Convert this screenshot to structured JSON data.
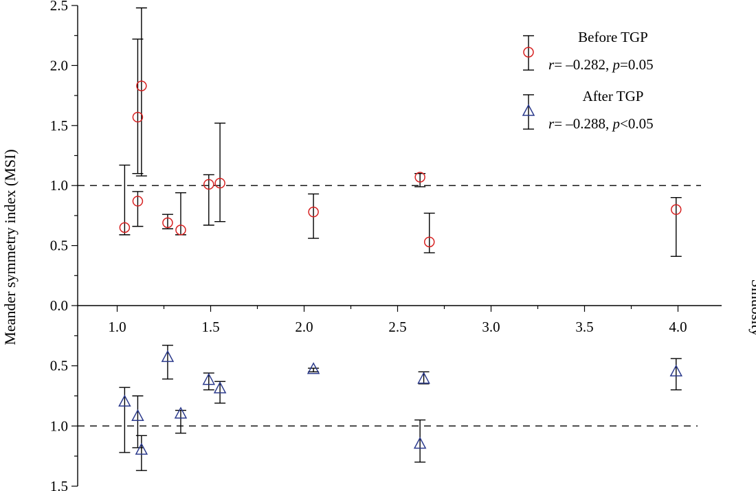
{
  "chart_data": {
    "type": "scatter",
    "xlabel": "Sinuosity",
    "ylabel": "Meander symmetry index (MSI)",
    "xlim": [
      0.85,
      4.1
    ],
    "x_ticks": [
      "1.0",
      "1.5",
      "2.0",
      "2.5",
      "3.0",
      "3.5",
      "4.0"
    ],
    "upper_y_ticks": [
      "0.0",
      "0.5",
      "1.0",
      "1.5",
      "2.0",
      "2.5"
    ],
    "lower_y_ticks": [
      "0.5",
      "1.0",
      "1.5"
    ],
    "upper_ylim": [
      0,
      2.5
    ],
    "lower_ylim": [
      0,
      1.5
    ],
    "reference_value": 1.0,
    "grid": false,
    "legend_position": "top-right",
    "series": [
      {
        "name": "Before TGP",
        "stat_r": "= –0.282, ",
        "stat_p": "=0.05",
        "marker": "circle",
        "color": "#d62020",
        "panel": "upper",
        "points": [
          {
            "x": 1.04,
            "y": 0.65,
            "lo": 0.59,
            "hi": 1.17
          },
          {
            "x": 1.11,
            "y": 0.87,
            "lo": 0.66,
            "hi": 0.95
          },
          {
            "x": 1.11,
            "y": 1.57,
            "lo": 1.1,
            "hi": 2.22
          },
          {
            "x": 1.13,
            "y": 1.83,
            "lo": 1.08,
            "hi": 2.48
          },
          {
            "x": 1.27,
            "y": 0.69,
            "lo": 0.64,
            "hi": 0.76
          },
          {
            "x": 1.34,
            "y": 0.63,
            "lo": 0.59,
            "hi": 0.94
          },
          {
            "x": 1.49,
            "y": 1.01,
            "lo": 0.67,
            "hi": 1.09
          },
          {
            "x": 1.55,
            "y": 1.02,
            "lo": 0.7,
            "hi": 1.52
          },
          {
            "x": 2.05,
            "y": 0.78,
            "lo": 0.56,
            "hi": 0.93
          },
          {
            "x": 2.62,
            "y": 1.07,
            "lo": 0.99,
            "hi": 1.1
          },
          {
            "x": 2.67,
            "y": 0.53,
            "lo": 0.44,
            "hi": 0.77
          },
          {
            "x": 3.99,
            "y": 0.8,
            "lo": 0.41,
            "hi": 0.9
          }
        ]
      },
      {
        "name": "After TGP",
        "stat_r": "= –0.288, ",
        "stat_p": "<0.05",
        "marker": "triangle",
        "color": "#2b3a8c",
        "panel": "lower",
        "points": [
          {
            "x": 1.04,
            "y": 0.8,
            "lo": 0.68,
            "hi": 1.22
          },
          {
            "x": 1.11,
            "y": 0.92,
            "lo": 0.75,
            "hi": 1.18
          },
          {
            "x": 1.13,
            "y": 1.2,
            "lo": 1.08,
            "hi": 1.37
          },
          {
            "x": 1.27,
            "y": 0.43,
            "lo": 0.33,
            "hi": 0.61
          },
          {
            "x": 1.34,
            "y": 0.9,
            "lo": 0.87,
            "hi": 1.06
          },
          {
            "x": 1.49,
            "y": 0.62,
            "lo": 0.56,
            "hi": 0.7
          },
          {
            "x": 1.55,
            "y": 0.69,
            "lo": 0.63,
            "hi": 0.81
          },
          {
            "x": 2.05,
            "y": 0.53,
            "lo": 0.52,
            "hi": 0.55
          },
          {
            "x": 2.62,
            "y": 1.15,
            "lo": 0.95,
            "hi": 1.3
          },
          {
            "x": 2.64,
            "y": 0.61,
            "lo": 0.55,
            "hi": 0.65
          },
          {
            "x": 3.99,
            "y": 0.55,
            "lo": 0.44,
            "hi": 0.7
          }
        ]
      }
    ]
  }
}
